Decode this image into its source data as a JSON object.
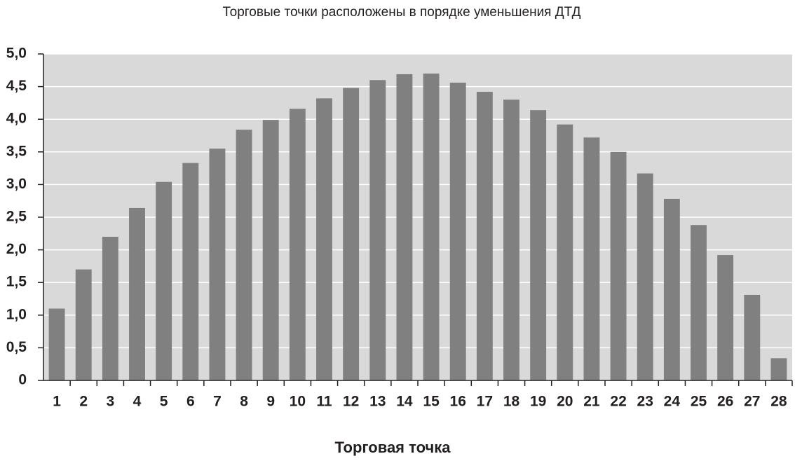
{
  "chart_data": {
    "type": "bar",
    "title": "Торговые точки расположены в порядке уменьшения ДТД",
    "x_label": "Торговая точка",
    "categories": [
      "1",
      "2",
      "3",
      "4",
      "5",
      "6",
      "7",
      "8",
      "9",
      "10",
      "11",
      "12",
      "13",
      "14",
      "15",
      "16",
      "17",
      "18",
      "19",
      "20",
      "21",
      "22",
      "23",
      "24",
      "25",
      "26",
      "27",
      "28"
    ],
    "values": [
      1.1,
      1.7,
      2.2,
      2.64,
      3.04,
      3.33,
      3.55,
      3.84,
      3.99,
      4.16,
      4.32,
      4.48,
      4.6,
      4.69,
      4.7,
      4.56,
      4.42,
      4.3,
      4.14,
      3.92,
      3.72,
      3.5,
      3.17,
      2.78,
      2.38,
      1.92,
      1.31,
      0.34
    ],
    "color": "#808080",
    "ylim": [
      0,
      5
    ],
    "yticks": [
      0,
      {
        "value": 0.5,
        "label": "0,5"
      },
      {
        "value": 1,
        "label": "1,0"
      },
      {
        "value": 1.5,
        "label": "1,5"
      },
      {
        "value": 2,
        "label": "2,0"
      },
      {
        "value": 2.5,
        "label": "2,5"
      },
      {
        "value": 3,
        "label": "3,0"
      },
      {
        "value": 3.5,
        "label": "3,5"
      },
      {
        "value": 4,
        "label": "4,0"
      },
      {
        "value": 4.5,
        "label": "4,5"
      },
      {
        "value": 5,
        "label": "5,0"
      }
    ],
    "grid": true
  }
}
